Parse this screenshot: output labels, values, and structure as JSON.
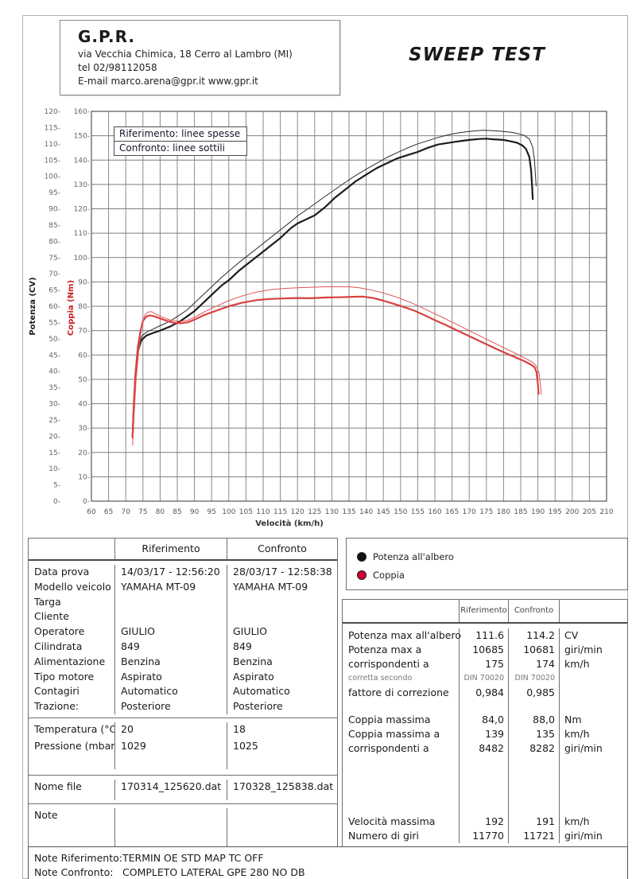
{
  "header": {
    "company": "G.P.R.",
    "address": "via Vecchia Chimica, 18 Cerro al Lambro (MI)",
    "tel": "tel 02/98112058",
    "email": "E-mail marco.arena@gpr.it  www.gpr.it",
    "title": "SWEEP TEST"
  },
  "chart_data": {
    "type": "line",
    "xlabel": "Velocità (km/h)",
    "x_range": [
      60,
      210
    ],
    "x_step": 5,
    "grid": true,
    "axes": {
      "power": {
        "label": "Potenza (CV)",
        "range": [
          0,
          120
        ],
        "step": 5,
        "color": "#1a1a1a"
      },
      "torque": {
        "label": "Coppia (Nm)",
        "range": [
          0,
          160
        ],
        "step": 10,
        "color": "#cc1f1f"
      }
    },
    "legend_box_lines": [
      "Riferimento: linee spesse",
      "Confronto: linee sottili"
    ],
    "series": [
      {
        "name": "potenza-riferimento",
        "axis": "power",
        "color": "#1c1c1c",
        "width": 2.2,
        "points": [
          [
            72,
            20
          ],
          [
            72.3,
            28
          ],
          [
            72.8,
            38
          ],
          [
            73.5,
            46
          ],
          [
            74.5,
            49.5
          ],
          [
            76,
            51
          ],
          [
            78,
            51.8
          ],
          [
            80,
            52.5
          ],
          [
            83,
            53.8
          ],
          [
            86,
            55.5
          ],
          [
            88,
            57
          ],
          [
            90,
            58.5
          ],
          [
            92,
            60.5
          ],
          [
            95,
            63.5
          ],
          [
            98,
            66.5
          ],
          [
            100,
            68
          ],
          [
            103,
            71
          ],
          [
            106,
            73.5
          ],
          [
            109,
            76
          ],
          [
            112,
            78.5
          ],
          [
            115,
            81
          ],
          [
            118,
            84
          ],
          [
            120,
            85.5
          ],
          [
            123,
            87
          ],
          [
            125,
            88
          ],
          [
            128,
            90.5
          ],
          [
            131,
            93.5
          ],
          [
            134,
            96
          ],
          [
            137,
            98.5
          ],
          [
            140,
            100.5
          ],
          [
            143,
            102.5
          ],
          [
            146,
            104
          ],
          [
            149,
            105.5
          ],
          [
            152,
            106.5
          ],
          [
            155,
            107.5
          ],
          [
            158,
            108.8
          ],
          [
            161,
            109.8
          ],
          [
            164,
            110.3
          ],
          [
            167,
            110.8
          ],
          [
            170,
            111.2
          ],
          [
            173,
            111.5
          ],
          [
            175,
            111.6
          ],
          [
            177,
            111.4
          ],
          [
            180,
            111.2
          ],
          [
            182,
            110.8
          ],
          [
            184,
            110.3
          ],
          [
            185.5,
            109.5
          ],
          [
            186.5,
            108.5
          ],
          [
            187.5,
            106
          ],
          [
            188,
            102
          ],
          [
            188.3,
            97
          ],
          [
            188.5,
            93
          ]
        ]
      },
      {
        "name": "potenza-confronto",
        "axis": "power",
        "color": "#2a2a2a",
        "width": 1,
        "points": [
          [
            72,
            22
          ],
          [
            72.4,
            32
          ],
          [
            73,
            42
          ],
          [
            73.8,
            48
          ],
          [
            74.8,
            51
          ],
          [
            76,
            52
          ],
          [
            78,
            53
          ],
          [
            80,
            54
          ],
          [
            83,
            55.5
          ],
          [
            86,
            57.5
          ],
          [
            88,
            59
          ],
          [
            90,
            61
          ],
          [
            92,
            63
          ],
          [
            95,
            66
          ],
          [
            98,
            69
          ],
          [
            100,
            70.8
          ],
          [
            103,
            73.5
          ],
          [
            106,
            76
          ],
          [
            109,
            78.5
          ],
          [
            112,
            81
          ],
          [
            115,
            83.5
          ],
          [
            118,
            86
          ],
          [
            120,
            87.8
          ],
          [
            123,
            90
          ],
          [
            125,
            91.5
          ],
          [
            128,
            93.8
          ],
          [
            131,
            96
          ],
          [
            134,
            98.2
          ],
          [
            137,
            100.3
          ],
          [
            140,
            102.2
          ],
          [
            143,
            104
          ],
          [
            146,
            105.8
          ],
          [
            149,
            107.3
          ],
          [
            152,
            108.7
          ],
          [
            155,
            110
          ],
          [
            158,
            111
          ],
          [
            161,
            112
          ],
          [
            164,
            112.8
          ],
          [
            167,
            113.4
          ],
          [
            170,
            113.8
          ],
          [
            173,
            114.1
          ],
          [
            174,
            114.2
          ],
          [
            176,
            114.1
          ],
          [
            179,
            113.9
          ],
          [
            182,
            113.6
          ],
          [
            184,
            113.2
          ],
          [
            186,
            112.6
          ],
          [
            187.5,
            111.5
          ],
          [
            188.5,
            109
          ],
          [
            189,
            105
          ],
          [
            189.3,
            100
          ],
          [
            189.5,
            97
          ]
        ]
      },
      {
        "name": "coppia-riferimento",
        "axis": "torque",
        "color": "#d94040",
        "width": 2.2,
        "points": [
          [
            72,
            26
          ],
          [
            72.3,
            38
          ],
          [
            72.8,
            52
          ],
          [
            73.5,
            63
          ],
          [
            74.3,
            70
          ],
          [
            75,
            74
          ],
          [
            76,
            75.8
          ],
          [
            77,
            76.2
          ],
          [
            78,
            76
          ],
          [
            80,
            75
          ],
          [
            82,
            74
          ],
          [
            84,
            73.2
          ],
          [
            86,
            73
          ],
          [
            88,
            73.4
          ],
          [
            90,
            74.5
          ],
          [
            93,
            76.5
          ],
          [
            96,
            78
          ],
          [
            100,
            80
          ],
          [
            104,
            81.5
          ],
          [
            108,
            82.5
          ],
          [
            112,
            83
          ],
          [
            116,
            83.2
          ],
          [
            120,
            83.4
          ],
          [
            124,
            83.3
          ],
          [
            128,
            83.6
          ],
          [
            132,
            83.7
          ],
          [
            136,
            83.9
          ],
          [
            139,
            84
          ],
          [
            142,
            83.4
          ],
          [
            145,
            82.3
          ],
          [
            148,
            81
          ],
          [
            151,
            79.7
          ],
          [
            154,
            78.2
          ],
          [
            157,
            76.3
          ],
          [
            160,
            74.3
          ],
          [
            163,
            72.4
          ],
          [
            166,
            70.4
          ],
          [
            169,
            68.4
          ],
          [
            172,
            66.4
          ],
          [
            175,
            64.4
          ],
          [
            178,
            62.4
          ],
          [
            181,
            60.5
          ],
          [
            184,
            58.7
          ],
          [
            186,
            57.5
          ],
          [
            188,
            56
          ],
          [
            189,
            55
          ],
          [
            189.6,
            53
          ],
          [
            190,
            48
          ],
          [
            190.2,
            44
          ]
        ]
      },
      {
        "name": "coppia-confronto",
        "axis": "torque",
        "color": "#e05555",
        "width": 1,
        "points": [
          [
            72,
            23
          ],
          [
            72.4,
            35
          ],
          [
            73,
            50
          ],
          [
            73.8,
            62
          ],
          [
            74.6,
            71
          ],
          [
            75.4,
            76
          ],
          [
            76.4,
            77.6
          ],
          [
            77.5,
            77.8
          ],
          [
            78.5,
            77
          ],
          [
            80,
            76
          ],
          [
            82,
            74.8
          ],
          [
            84,
            74
          ],
          [
            86,
            73.8
          ],
          [
            88,
            74.3
          ],
          [
            90,
            75.5
          ],
          [
            93,
            77.8
          ],
          [
            96,
            79.8
          ],
          [
            100,
            82.3
          ],
          [
            104,
            84.3
          ],
          [
            108,
            85.8
          ],
          [
            112,
            86.8
          ],
          [
            116,
            87.3
          ],
          [
            120,
            87.6
          ],
          [
            124,
            87.8
          ],
          [
            128,
            88
          ],
          [
            131,
            88
          ],
          [
            135,
            88
          ],
          [
            138,
            87.6
          ],
          [
            141,
            86.8
          ],
          [
            144,
            85.8
          ],
          [
            147,
            84.6
          ],
          [
            150,
            83.2
          ],
          [
            153,
            81.5
          ],
          [
            156,
            79.6
          ],
          [
            159,
            77.6
          ],
          [
            162,
            75.6
          ],
          [
            165,
            73.5
          ],
          [
            168,
            71.4
          ],
          [
            171,
            69.3
          ],
          [
            174,
            67.2
          ],
          [
            177,
            65.1
          ],
          [
            180,
            63
          ],
          [
            183,
            61
          ],
          [
            185,
            59.6
          ],
          [
            187,
            58.2
          ],
          [
            188.5,
            57
          ],
          [
            189.5,
            55.5
          ],
          [
            190.3,
            53
          ],
          [
            190.8,
            47
          ],
          [
            191,
            44
          ]
        ]
      }
    ]
  },
  "series_legend": {
    "items": [
      {
        "label": "Potenza all'albero",
        "color": "#111111"
      },
      {
        "label": "Coppia",
        "color": "#cc0033"
      }
    ]
  },
  "info_table": {
    "col_rif": "Riferimento",
    "col_conf": "Confronto",
    "sections": [
      {
        "rows": [
          [
            "Data prova",
            "14/03/17 - 12:56:20",
            "28/03/17 - 12:58:38"
          ],
          [
            "Modello veicolo",
            "YAMAHA MT-09",
            "YAMAHA MT-09"
          ],
          [
            "Targa",
            "",
            ""
          ],
          [
            "Cliente",
            "",
            ""
          ],
          [
            "Operatore",
            "GIULIO",
            "GIULIO"
          ],
          [
            "Cilindrata",
            "849",
            "849"
          ],
          [
            "Alimentazione",
            "Benzina",
            "Benzina"
          ],
          [
            "Tipo motore",
            "Aspirato",
            "Aspirato"
          ],
          [
            "Contagiri",
            "Automatico",
            "Automatico"
          ],
          [
            "Trazione:",
            "Posteriore",
            "Posteriore"
          ]
        ],
        "min_height": 188
      },
      {
        "rows": [
          [
            "Temperatura (°C)",
            "20",
            "18"
          ],
          [
            "Pressione (mbar)",
            "1029",
            "1025"
          ]
        ],
        "min_height": 62
      },
      {
        "rows": [
          [
            "Nome file",
            "170314_125620.dat",
            "170328_125838.dat"
          ]
        ],
        "min_height": 26
      },
      {
        "rows": [
          [
            "Note",
            "",
            ""
          ]
        ],
        "min_height": 72,
        "last": true
      }
    ]
  },
  "results_table": {
    "col_rif": "Riferimento",
    "col_conf": "Confronto",
    "rows": [
      {
        "label": "Potenza max all'albero",
        "rif": "111.6",
        "conf": "114.2",
        "unit": "CV"
      },
      {
        "label": "Potenza max a",
        "rif": "10685",
        "conf": "10681",
        "unit": "giri/min"
      },
      {
        "label": "corrispondenti a",
        "rif": "175",
        "conf": "174",
        "unit": "km/h"
      },
      {
        "label": "corretta secondo",
        "rif": "DIN 70020",
        "conf": "DIN 70020",
        "unit": "",
        "small": true
      },
      {
        "label": "fattore di correzione",
        "rif": "0,984",
        "conf": "0,985",
        "unit": ""
      },
      {
        "spacer": 16
      },
      {
        "label": "Coppia massima",
        "rif": "84,0",
        "conf": "88,0",
        "unit": "Nm"
      },
      {
        "label": "Coppia massima a",
        "rif": "139",
        "conf": "135",
        "unit": "km/h"
      },
      {
        "label": "corrispondenti a",
        "rif": "8482",
        "conf": "8282",
        "unit": "giri/min"
      },
      {
        "spacer": 74
      },
      {
        "label": "Velocità massima",
        "rif": "192",
        "conf": "191",
        "unit": "km/h"
      },
      {
        "label": "Numero di giri",
        "rif": "11770",
        "conf": "11721",
        "unit": "giri/min"
      }
    ]
  },
  "notes": {
    "rows": [
      {
        "label": "Note Riferimento:",
        "value": "TERMIN OE STD MAP TC OFF"
      },
      {
        "label": "Note Confronto:",
        "value": "COMPLETO LATERAL GPE 280 NO DB"
      }
    ]
  }
}
